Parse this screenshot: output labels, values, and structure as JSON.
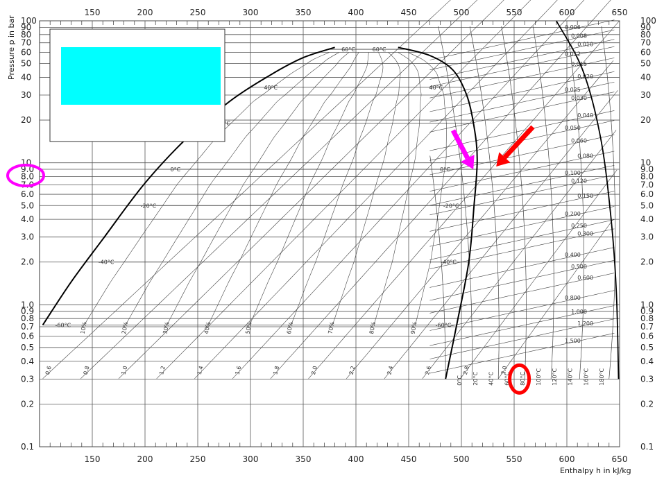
{
  "chart_data": {
    "type": "line",
    "xlabel": "Enthalpy  h in kJ/kg",
    "ylabel": "Pressure  p in bar",
    "xlim": [
      100,
      650
    ],
    "ylim": [
      0.1,
      100
    ],
    "yscale": "log",
    "x_ticks": [
      150,
      200,
      250,
      300,
      350,
      400,
      450,
      500,
      550,
      600,
      650
    ],
    "y_ticks": [
      0.1,
      0.2,
      0.3,
      0.4,
      0.5,
      0.6,
      0.7,
      0.8,
      0.9,
      1.0,
      2.0,
      3.0,
      4.0,
      5.0,
      6.0,
      7.0,
      8.0,
      9.0,
      10,
      20,
      30,
      40,
      50,
      60,
      70,
      80,
      90,
      100
    ],
    "y_tick_labels": [
      "0.1",
      "0.2",
      "0.3",
      "0.4",
      "0.5",
      "0.6",
      "0.7",
      "0.8",
      "0.9",
      "1.0",
      "2.0",
      "3.0",
      "4.0",
      "5.0",
      "6.0",
      "7.0",
      "8.0",
      "9.0",
      "10",
      "20",
      "30",
      "40",
      "50",
      "60",
      "70",
      "80",
      "90",
      "100"
    ],
    "grid": true,
    "saturation_liquid": {
      "name": "saturated liquid",
      "x": [
        103,
        130,
        160,
        200,
        240,
        280,
        320,
        350,
        380
      ],
      "y": [
        0.72,
        1.45,
        2.9,
        7.2,
        15,
        27,
        42,
        55,
        65
      ]
    },
    "saturation_vapor": {
      "name": "saturated vapor",
      "x": [
        485,
        496,
        507,
        512,
        515,
        512,
        505,
        492,
        470,
        440
      ],
      "y": [
        0.3,
        0.75,
        2.0,
        5.0,
        10.5,
        18,
        30,
        45,
        57,
        65
      ]
    },
    "isotherm_labels_left": [
      "60°C",
      "40°C",
      "20°C",
      "0°C",
      "-20°C",
      "-40°C",
      "-60°C"
    ],
    "isotherm_labels_right": [
      "60°C",
      "40°C",
      "0°C",
      "-20°C",
      "-40°C",
      "-60°C"
    ],
    "isotherm_label_pressures": [
      63,
      34,
      19,
      9.0,
      5.0,
      2.0,
      0.72
    ],
    "quality_labels": [
      "10%",
      "20%",
      "30%",
      "40%",
      "50%",
      "60%",
      "70%",
      "80%",
      "90%"
    ],
    "entropy_labels": [
      "0.6",
      "0.8",
      "1.0",
      "1.2",
      "1.4",
      "1.6",
      "1.8",
      "2.0",
      "2.2",
      "2.4",
      "2.6",
      "2.8",
      "3.0"
    ],
    "specific_volume_labels": [
      "0.006",
      "0.008",
      "0.010",
      "0.012",
      "0.015",
      "0.020",
      "0.025",
      "0.030",
      "0.040",
      "0.050",
      "0.060",
      "0.080",
      "0.100",
      "0.120",
      "0.150",
      "0.200",
      "0.250",
      "0.300",
      "0.400",
      "0.500",
      "0.600",
      "0.800",
      "1.000",
      "1.200",
      "1.500"
    ],
    "specific_volume_pressures": [
      74,
      63,
      54,
      48,
      40,
      32,
      27,
      23,
      17,
      14.5,
      11.5,
      8.8,
      7,
      6,
      4.6,
      3.6,
      2.9,
      2.5,
      1.85,
      1.5,
      1.22,
      0.92,
      0.72,
      0.58,
      0.46
    ],
    "superheat_temperature_labels": [
      "0°C",
      "20°C",
      "40°C",
      "60°C",
      "80°C",
      "100°C",
      "120°C",
      "140°C",
      "160°C",
      "180°C"
    ],
    "annotations": {
      "magenta_arrow_tip": {
        "h": 510,
        "p": 9.0
      },
      "red_arrow_tip": {
        "h": 533,
        "p": 9.0
      },
      "red_ellipse": {
        "h": 555,
        "p": 0.3
      },
      "magenta_ellipse_label": "9.0"
    }
  },
  "colors": {
    "grid": "#555555",
    "saturation": "#000000",
    "isolines": "#444444",
    "cyan_box": "#00ffff",
    "magenta": "#ff00ff",
    "red": "#ff0000"
  }
}
